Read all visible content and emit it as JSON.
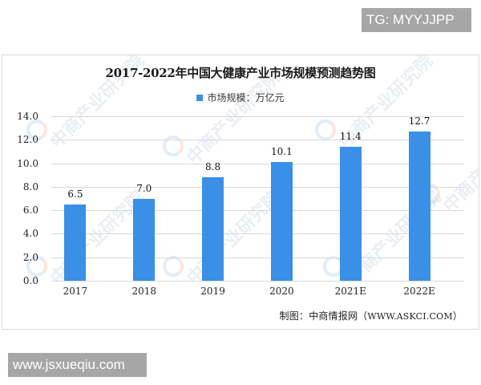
{
  "badges": {
    "top": "TG: MYYJJPP",
    "bottom": "www.jsxueqiu.com"
  },
  "chart": {
    "title": "2017-2022年中国大健康产业市场规模预测趋势图",
    "legend_label": "市场规模：万亿元",
    "source_prefix": "制图：中商情报网（",
    "source_url": "WWW.ASKCI.COM",
    "source_suffix": "）",
    "watermark_text": "中商产业研究院",
    "y_ticks": [
      "14.0",
      "12.0",
      "10.0",
      "8.0",
      "6.0",
      "4.0",
      "2.0",
      "0.0"
    ],
    "bar_labels": [
      "6.5",
      "7.0",
      "8.8",
      "10.1",
      "11.4",
      "12.7"
    ],
    "x_labels": [
      "2017",
      "2018",
      "2019",
      "2020",
      "2021E",
      "2022E"
    ]
  },
  "colors": {
    "bar": "#3a8fe6",
    "gridline": "#d9d9d9",
    "badge_bg": "#a6a6a6"
  },
  "chart_data": {
    "type": "bar",
    "title": "2017-2022年中国大健康产业市场规模预测趋势图",
    "categories": [
      "2017",
      "2018",
      "2019",
      "2020",
      "2021E",
      "2022E"
    ],
    "series": [
      {
        "name": "市场规模：万亿元",
        "values": [
          6.5,
          7.0,
          8.8,
          10.1,
          11.4,
          12.7
        ]
      }
    ],
    "values": [
      6.5,
      7.0,
      8.8,
      10.1,
      11.4,
      12.7
    ],
    "xlabel": "",
    "ylabel": "",
    "ylim": [
      0,
      14
    ],
    "y_ticks": [
      0,
      2,
      4,
      6,
      8,
      10,
      12,
      14
    ],
    "grid": true,
    "legend_position": "top",
    "data_labels": true,
    "annotations": [
      "制图：中商情报网（WWW.ASKCI.COM）"
    ]
  }
}
